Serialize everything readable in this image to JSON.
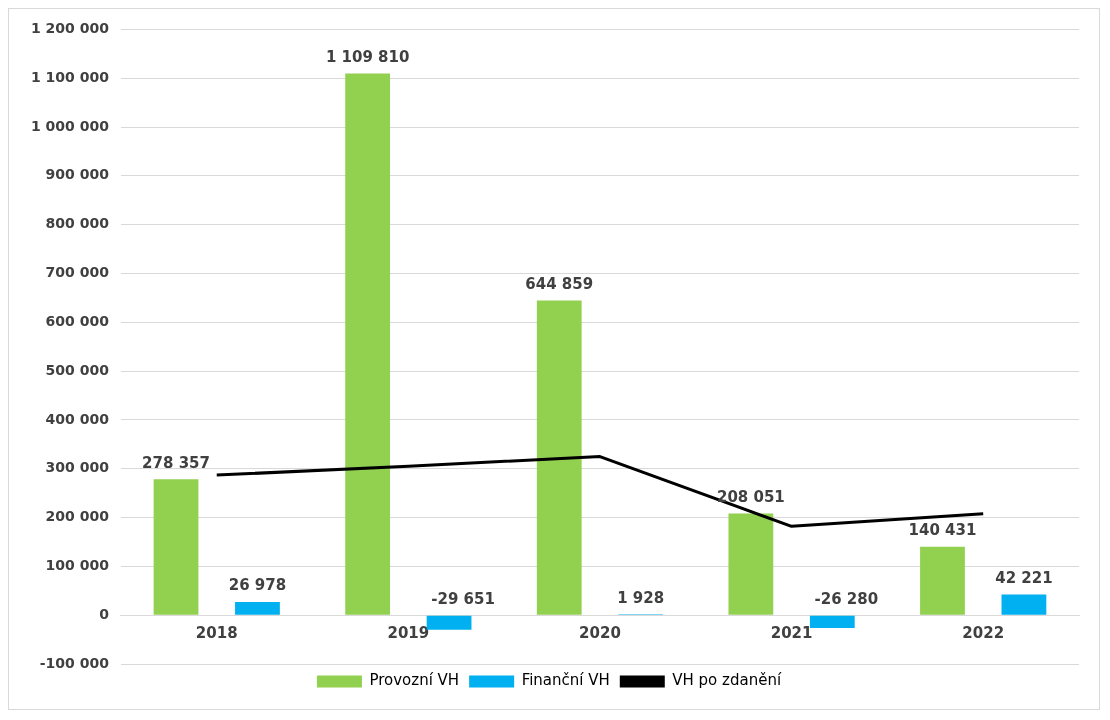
{
  "chart_data": {
    "type": "bar",
    "categories": [
      "2018",
      "2019",
      "2020",
      "2021",
      "2022"
    ],
    "series": [
      {
        "name": "Provozní VH",
        "color": "#92d050",
        "values": [
          278357,
          1109810,
          644859,
          208051,
          140431
        ],
        "value_labels": [
          "278 357",
          "1 109 810",
          "644 859",
          "208 051",
          "140 431"
        ]
      },
      {
        "name": "Finanční VH",
        "color": "#00b0f0",
        "values": [
          26978,
          -29651,
          1928,
          -26280,
          42221
        ],
        "value_labels": [
          "26 978",
          "-29 651",
          "1 928",
          "-26 280",
          "42 221"
        ]
      },
      {
        "name": "VH po zdanění",
        "type": "line",
        "color": "#000000",
        "values": [
          287000,
          305000,
          325000,
          182000,
          208000
        ]
      }
    ],
    "ylim": [
      -100000,
      1200000
    ],
    "yticks": [
      {
        "value": -100000,
        "label": "-100 000"
      },
      0,
      {
        "value": 100000,
        "label": "100 000"
      },
      {
        "value": 200000,
        "label": "200 000"
      },
      {
        "value": 300000,
        "label": "300 000"
      },
      {
        "value": 400000,
        "label": "400 000"
      },
      {
        "value": 500000,
        "label": "500 000"
      },
      {
        "value": 600000,
        "label": "600 000"
      },
      {
        "value": 700000,
        "label": "700 000"
      },
      {
        "value": 800000,
        "label": "800 000"
      },
      {
        "value": 900000,
        "label": "900 000"
      },
      {
        "value": 1000000,
        "label": "1 000 000"
      },
      {
        "value": 1100000,
        "label": "1 100 000"
      },
      {
        "value": 1200000,
        "label": "1 200 000"
      }
    ],
    "grid": "y",
    "legend": "bottom",
    "marker": "none",
    "line_style": "solid"
  }
}
